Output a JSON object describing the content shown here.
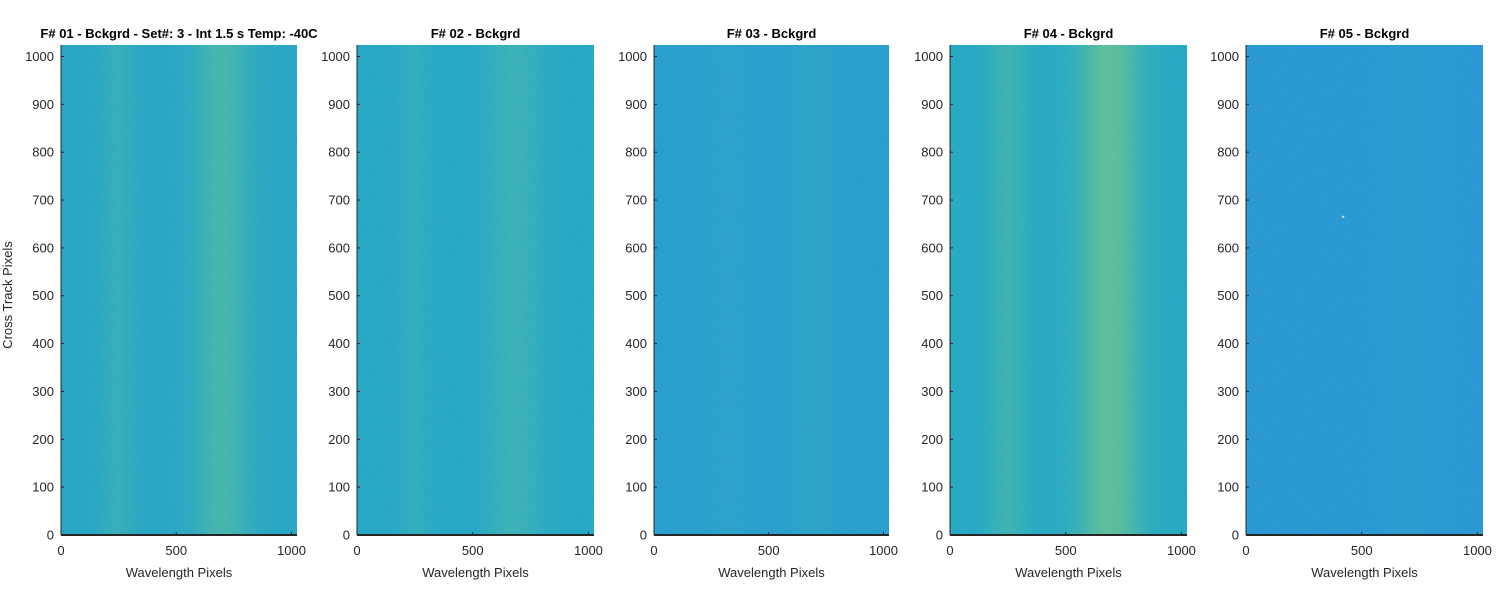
{
  "chart_data": [
    {
      "type": "heatmap",
      "title": "F# 01 - Bckgrd - Set#: 3 - Int 1.5 s Temp: -40C",
      "xlabel": "Wavelength Pixels",
      "ylabel": "Cross Track Pixels",
      "xlim": [
        0,
        1024
      ],
      "ylim": [
        0,
        1024
      ],
      "xticks": [
        0,
        500,
        1000
      ],
      "yticks": [
        0,
        100,
        200,
        300,
        400,
        500,
        600,
        700,
        800,
        900,
        1000
      ],
      "colors": {
        "base": "#1a9fc4",
        "bright": "#4db8a0"
      },
      "bands": [
        {
          "x_center": 250,
          "width": 60,
          "strength": 0.35
        },
        {
          "x_center": 700,
          "width": 110,
          "strength": 0.7
        }
      ],
      "hot_pixels": []
    },
    {
      "type": "heatmap",
      "title": "F# 02 - Bckgrd",
      "xlabel": "Wavelength Pixels",
      "ylabel": "",
      "xlim": [
        0,
        1024
      ],
      "ylim": [
        0,
        1024
      ],
      "xticks": [
        0,
        500,
        1000
      ],
      "yticks": [
        0,
        100,
        200,
        300,
        400,
        500,
        600,
        700,
        800,
        900,
        1000
      ],
      "colors": {
        "base": "#17a1c6",
        "bright": "#44b4a6"
      },
      "bands": [
        {
          "x_center": 250,
          "width": 60,
          "strength": 0.3
        },
        {
          "x_center": 680,
          "width": 110,
          "strength": 0.55
        }
      ],
      "hot_pixels": []
    },
    {
      "type": "heatmap",
      "title": "F# 03 - Bckgrd",
      "xlabel": "Wavelength Pixels",
      "ylabel": "",
      "xlim": [
        0,
        1024
      ],
      "ylim": [
        0,
        1024
      ],
      "xticks": [
        0,
        500,
        1000
      ],
      "yticks": [
        0,
        100,
        200,
        300,
        400,
        500,
        600,
        700,
        800,
        900,
        1000
      ],
      "colors": {
        "base": "#1a96d0",
        "bright": "#2aa8b8"
      },
      "bands": [
        {
          "x_center": 320,
          "width": 80,
          "strength": 0.25
        },
        {
          "x_center": 700,
          "width": 100,
          "strength": 0.3
        }
      ],
      "hot_pixels": []
    },
    {
      "type": "heatmap",
      "title": "F# 04 - Bckgrd",
      "xlabel": "Wavelength Pixels",
      "ylabel": "",
      "xlim": [
        0,
        1024
      ],
      "ylim": [
        0,
        1024
      ],
      "xticks": [
        0,
        500,
        1000
      ],
      "yticks": [
        0,
        100,
        200,
        300,
        400,
        500,
        600,
        700,
        800,
        900,
        1000
      ],
      "colors": {
        "base": "#18a2c4",
        "bright": "#5fbd8e"
      },
      "bands": [
        {
          "x_center": 250,
          "width": 70,
          "strength": 0.4
        },
        {
          "x_center": 690,
          "width": 130,
          "strength": 0.9
        }
      ],
      "hot_pixels": []
    },
    {
      "type": "heatmap",
      "title": "F# 05 - Bckgrd",
      "xlabel": "Wavelength Pixels",
      "ylabel": "",
      "xlim": [
        0,
        1024
      ],
      "ylim": [
        0,
        1024
      ],
      "xticks": [
        0,
        500,
        1000
      ],
      "yticks": [
        0,
        100,
        200,
        300,
        400,
        500,
        600,
        700,
        800,
        900,
        1000
      ],
      "colors": {
        "base": "#1b8fd6",
        "bright": "#1fa0c8"
      },
      "bands": [
        {
          "x_center": 700,
          "width": 120,
          "strength": 0.25
        }
      ],
      "hot_pixels": [
        {
          "x": 420,
          "y": 665
        }
      ]
    }
  ]
}
